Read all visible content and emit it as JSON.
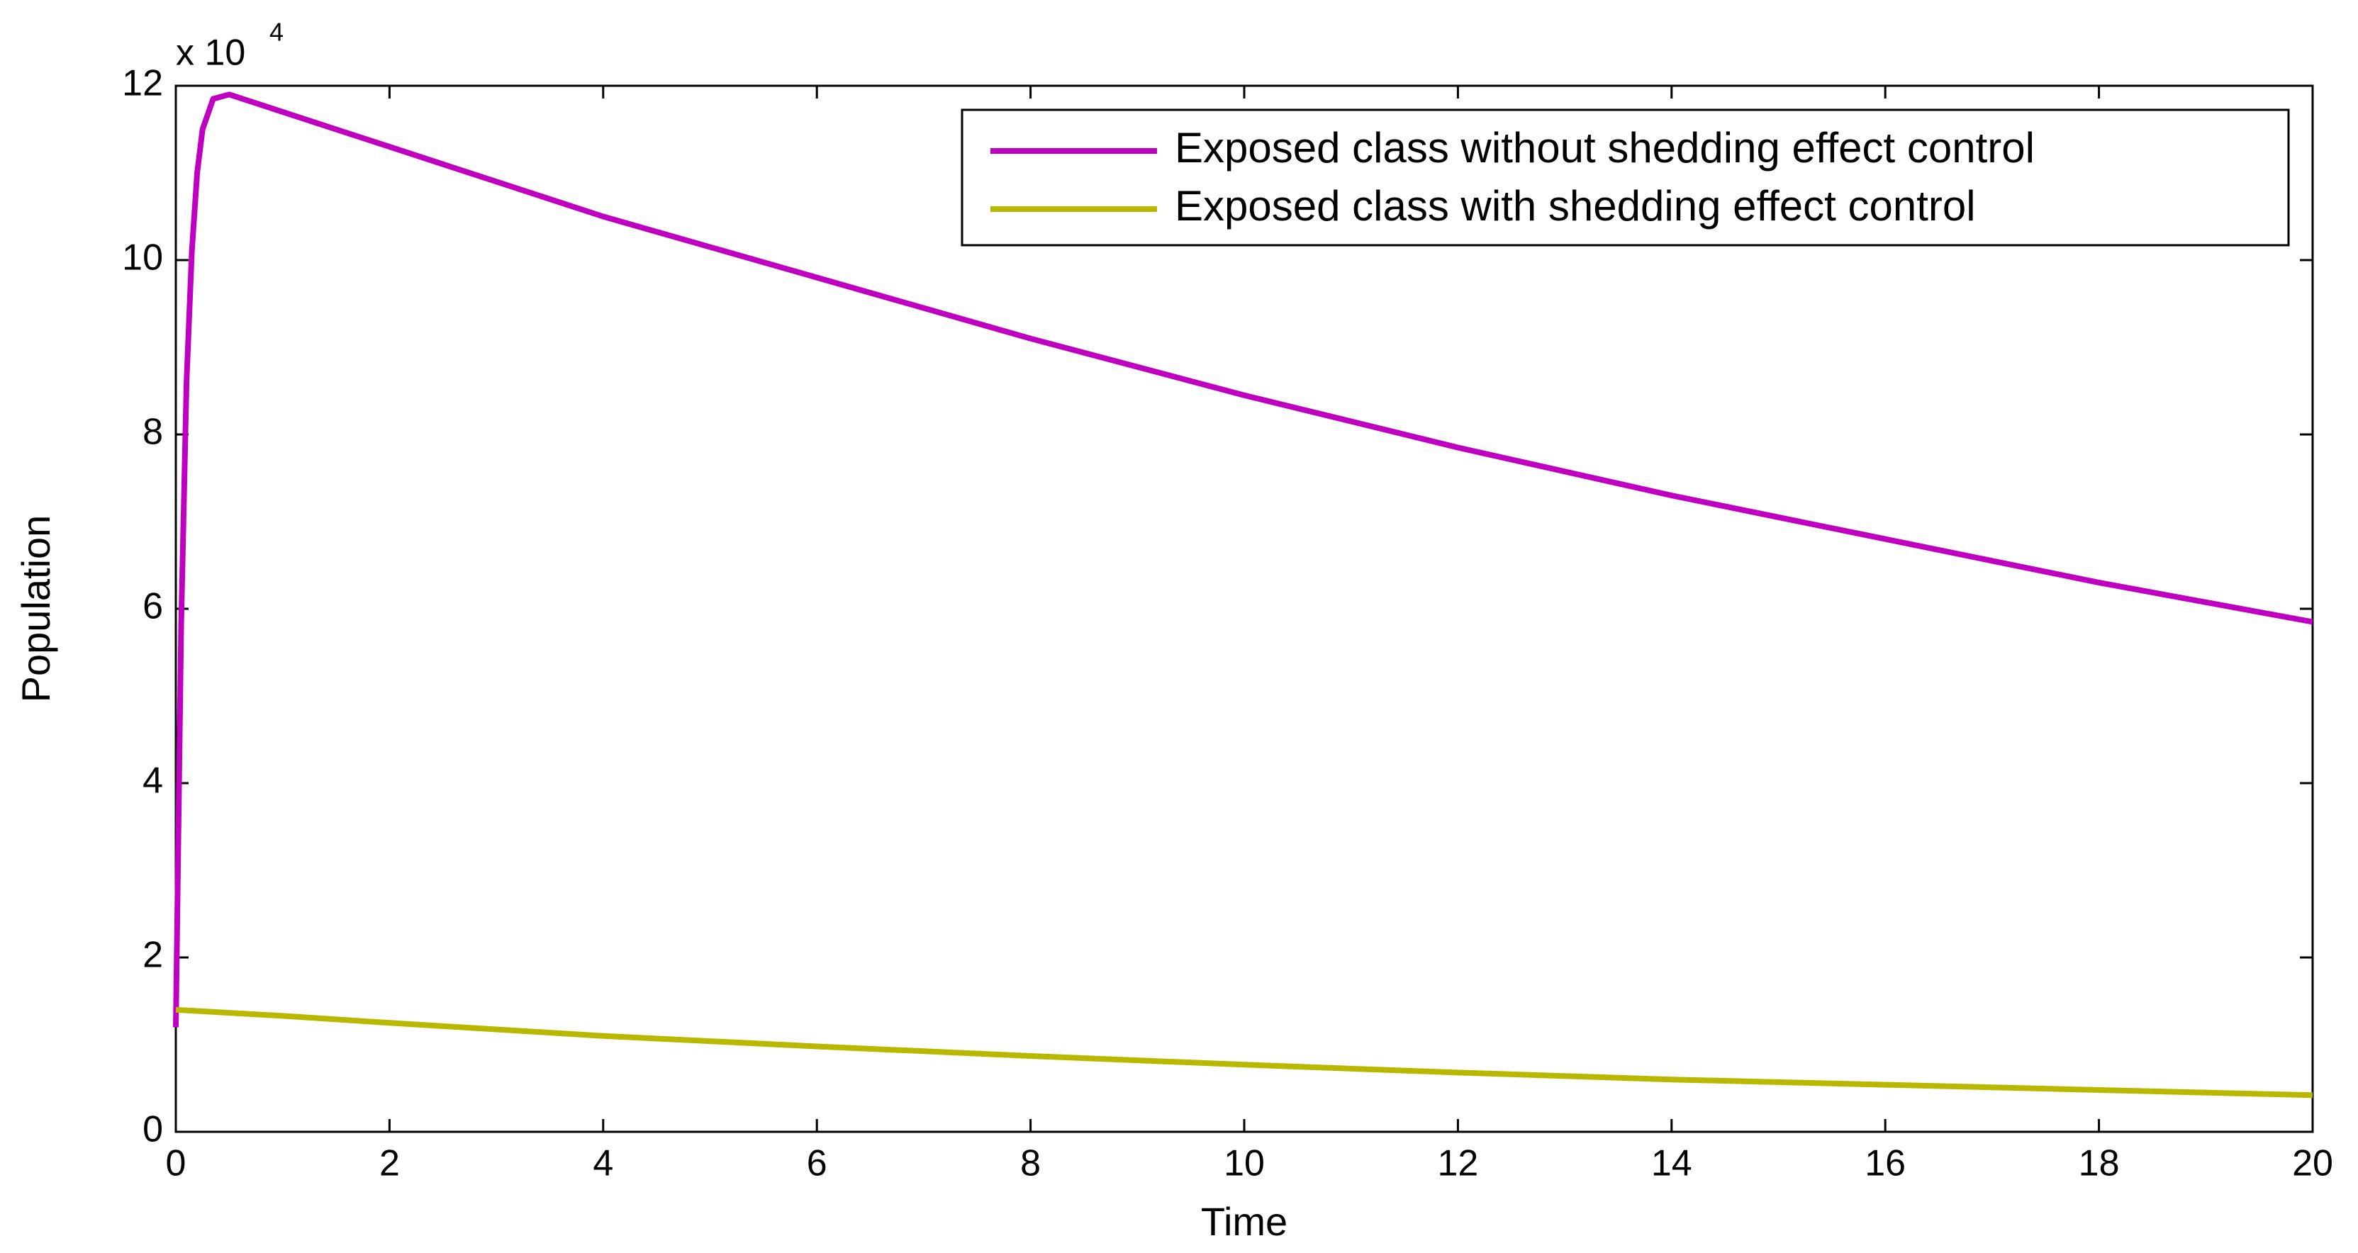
{
  "chart_data": {
    "type": "line",
    "x_label": "Time",
    "y_label": "Population",
    "y_offset_text": "x 10",
    "y_offset_exponent": "4",
    "xlim": [
      0,
      20
    ],
    "ylim": [
      0,
      12
    ],
    "xticks": [
      0,
      2,
      4,
      6,
      8,
      10,
      12,
      14,
      16,
      18,
      20
    ],
    "yticks": [
      0,
      2,
      4,
      6,
      8,
      10,
      12
    ],
    "grid": false,
    "legend_position": "northeast",
    "series": [
      {
        "name": "Exposed class without shedding effect control",
        "color": "#c000c0",
        "x": [
          0,
          0.05,
          0.1,
          0.15,
          0.2,
          0.25,
          0.35,
          0.5,
          1,
          2,
          4,
          6,
          8,
          10,
          12,
          14,
          16,
          18,
          20
        ],
        "values": [
          1.2,
          5.8,
          8.6,
          10.1,
          11.0,
          11.5,
          11.85,
          11.9,
          11.7,
          11.3,
          10.5,
          9.8,
          9.1,
          8.45,
          7.85,
          7.3,
          6.8,
          6.3,
          5.85
        ]
      },
      {
        "name": "Exposed class with shedding effect control",
        "color": "#b8b800",
        "x": [
          0,
          1,
          2,
          4,
          6,
          8,
          10,
          12,
          14,
          16,
          18,
          20
        ],
        "values": [
          1.4,
          1.33,
          1.25,
          1.1,
          0.98,
          0.87,
          0.77,
          0.68,
          0.6,
          0.54,
          0.48,
          0.42
        ]
      }
    ]
  }
}
